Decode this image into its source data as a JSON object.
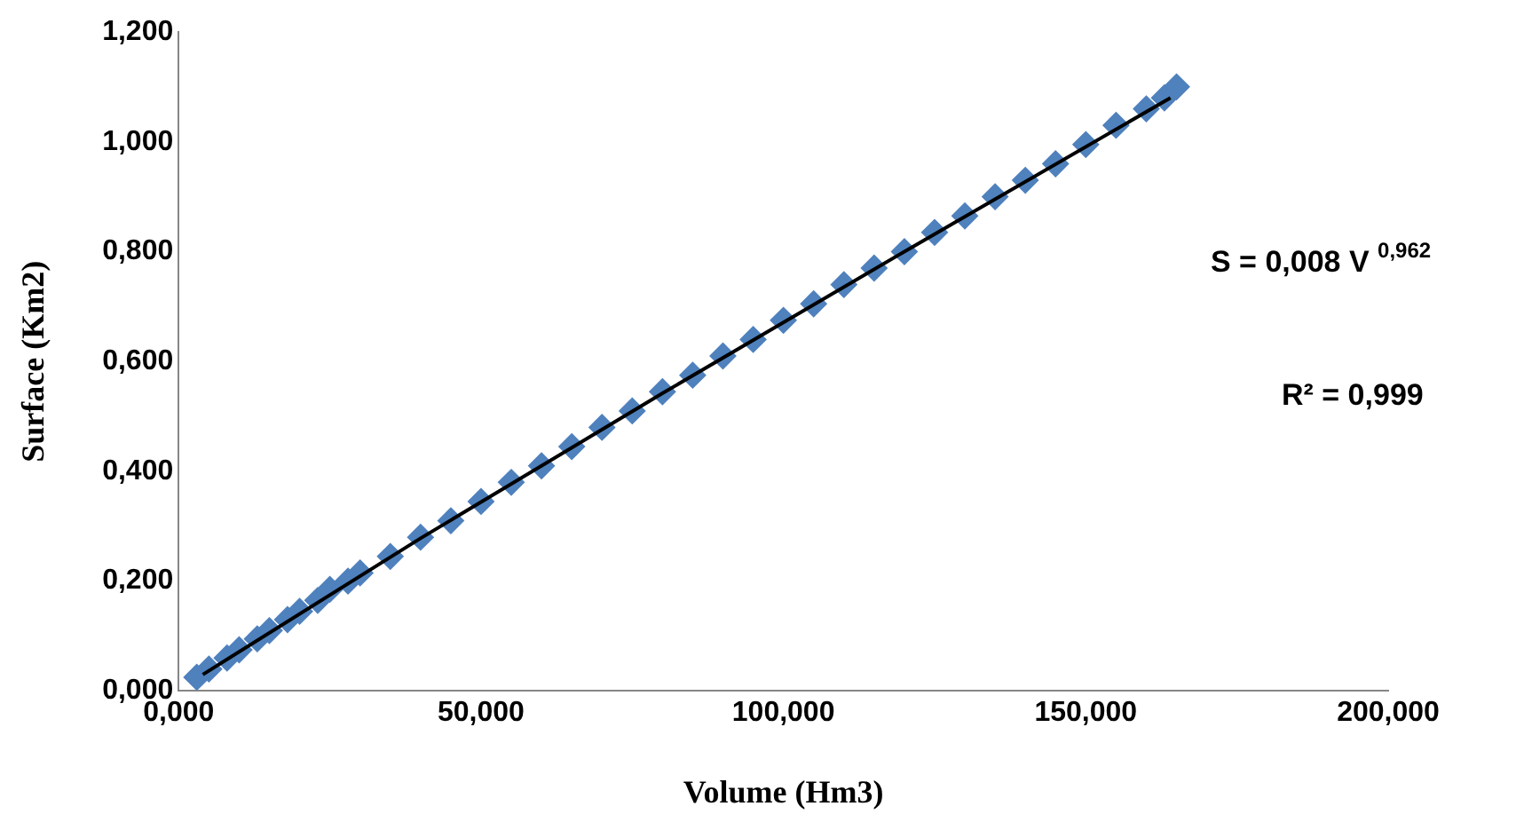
{
  "chart_data": {
    "type": "scatter",
    "xlabel": "Volume (Hm3)",
    "ylabel": "Surface (Km2)",
    "xlim": [
      0,
      200
    ],
    "xticks": [
      {
        "value": 0,
        "label": "0,000"
      },
      {
        "value": 50,
        "label": "50,000"
      },
      {
        "value": 100,
        "label": "100,000"
      },
      {
        "value": 150,
        "label": "150,000"
      },
      {
        "value": 200,
        "label": "200,000"
      }
    ],
    "ylim": [
      0,
      1.2
    ],
    "yticks": [
      {
        "value": 0,
        "label": "0,000"
      },
      {
        "value": 0.2,
        "label": "0,200"
      },
      {
        "value": 0.4,
        "label": "0,400"
      },
      {
        "value": 0.6,
        "label": "0,600"
      },
      {
        "value": 0.8,
        "label": "0,800"
      },
      {
        "value": 1,
        "label": "1,000"
      },
      {
        "value": 1.2,
        "label": "1,200"
      }
    ],
    "grid": false,
    "legend": false,
    "marker": "diamond",
    "series": [
      {
        "color": "#4f81bd",
        "x": [
          3,
          5,
          8,
          10,
          13,
          15,
          18,
          20,
          23,
          25,
          28,
          30,
          35,
          40,
          45,
          50,
          55,
          60,
          65,
          70,
          75,
          80,
          85,
          90,
          95,
          100,
          105,
          110,
          115,
          120,
          125,
          130,
          135,
          140,
          145,
          150,
          155,
          160,
          163,
          165
        ],
        "values": [
          0.025,
          0.04,
          0.06,
          0.075,
          0.095,
          0.11,
          0.13,
          0.145,
          0.165,
          0.185,
          0.2,
          0.215,
          0.245,
          0.28,
          0.31,
          0.345,
          0.38,
          0.41,
          0.445,
          0.48,
          0.51,
          0.545,
          0.575,
          0.61,
          0.64,
          0.675,
          0.705,
          0.74,
          0.77,
          0.8,
          0.835,
          0.865,
          0.9,
          0.93,
          0.96,
          0.995,
          1.03,
          1.06,
          1.08,
          1.1
        ]
      },
      {
        "type": "line",
        "color": "#000000",
        "marker": "none",
        "x": [
          4,
          40,
          80,
          120,
          164
        ],
        "values": [
          0.03,
          0.278,
          0.542,
          0.8,
          1.08
        ]
      }
    ],
    "annotations": [
      "S = 0,008 V $^{0,962}$",
      "R² = 0,999"
    ]
  }
}
